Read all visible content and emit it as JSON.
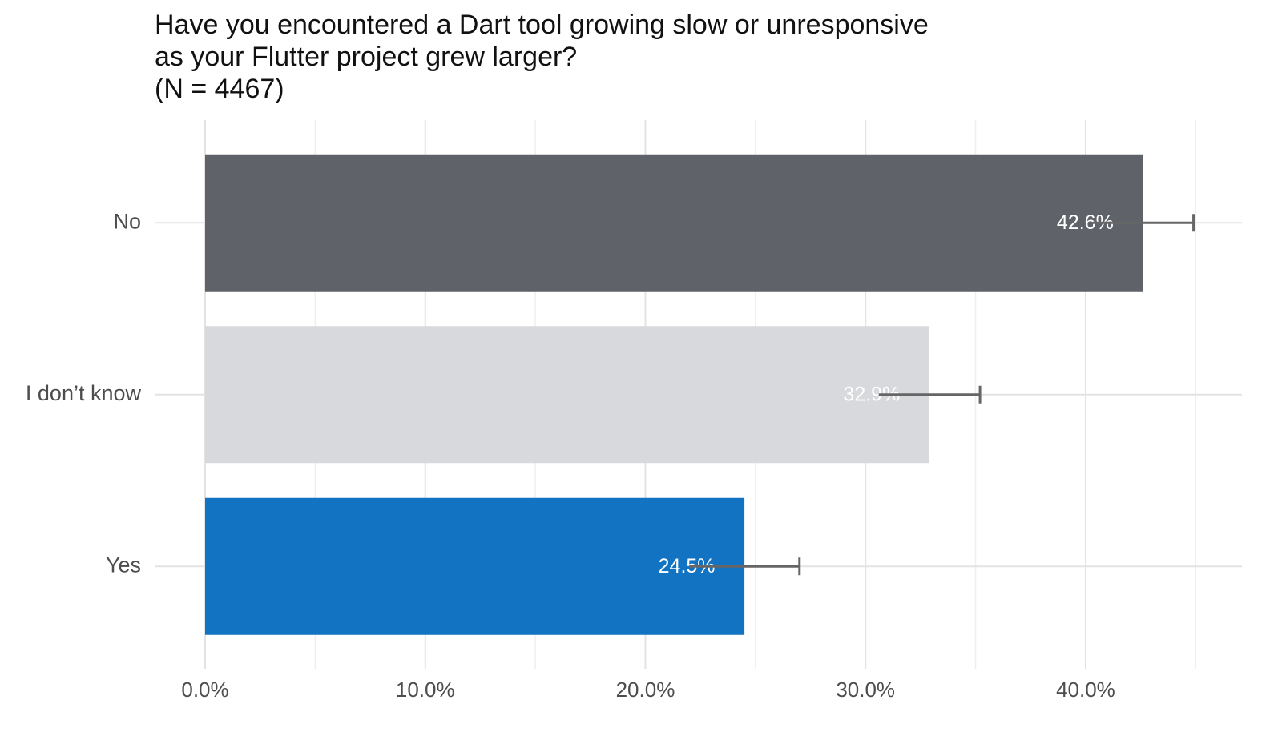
{
  "chart_data": {
    "type": "barh",
    "title": [
      "Have you encountered a Dart tool growing slow or unresponsive",
      "as your Flutter project grew larger?",
      "(N = 4467)"
    ],
    "categories": [
      "No",
      "I don’t know",
      "Yes"
    ],
    "values": [
      42.6,
      32.9,
      24.5
    ],
    "value_labels": [
      "42.6%",
      "32.9%",
      "24.5%"
    ],
    "errors": [
      2.3,
      2.3,
      2.5
    ],
    "colors": [
      "#5f6369",
      "#d8d9dc",
      "#1273c3"
    ],
    "error_color": "#666666",
    "xlim": [
      0,
      47.1
    ],
    "xticks": [
      {
        "value": 0,
        "label": "0.0%"
      },
      {
        "value": 10,
        "label": "10.0%"
      },
      {
        "value": 20,
        "label": "20.0%"
      },
      {
        "value": 30,
        "label": "30.0%"
      },
      {
        "value": 40,
        "label": "40.0%"
      }
    ],
    "xminorticks": [
      5,
      15,
      25,
      35,
      45
    ],
    "grid": true
  }
}
